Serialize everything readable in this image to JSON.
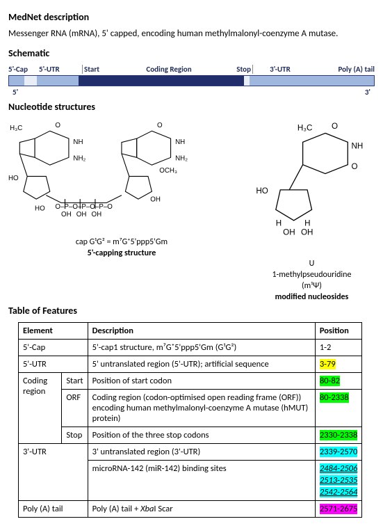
{
  "sections": {
    "mednet": "MedNet description",
    "schematic": "Schematic",
    "nucleotides": "Nucleotide structures",
    "features": "Table of Features"
  },
  "description": "Messenger RNA (mRNA), 5' capped, encoding human methylmalonyl-coenzyme A mutase.",
  "schematic": {
    "labels": {
      "cap": "5'-Cap",
      "utr5": "5'-UTR",
      "start": "Start",
      "coding": "Coding Region",
      "stop": "Stop",
      "utr3": "3'-UTR",
      "polya": "Poly (A) tail"
    },
    "five": "5'",
    "three": "3'",
    "widths": {
      "cap": 22,
      "gap1": 18,
      "utr5": 60,
      "cds": 238,
      "gap2": 8,
      "utr3": 80,
      "polya": 90
    },
    "colors": {
      "bar_border": "#2b3b7c",
      "light": "#9fb6dd",
      "dark": "#222d6b",
      "gap": "#e8edf6",
      "label": "#222d5a"
    }
  },
  "nucleotide_captions": {
    "cap_formula": "cap G¹G² = m⁷G⁺5'ppp5'Gm",
    "cap_title": "5'-capping structure",
    "u_letter": "U",
    "u_name": "1-methylpseudouridine",
    "u_abbrev": "(m¹Ψ)",
    "mod_title": "modified nucleosides"
  },
  "table": {
    "headers": {
      "element": "Element",
      "description": "Description",
      "position": "Position"
    },
    "rows": [
      {
        "element": "5'-Cap",
        "sub": "",
        "desc": "5'-cap1 structure, m⁷G⁺5'ppp5'Gm (G¹G²)",
        "pos": "1-2",
        "hl": null
      },
      {
        "element": "5'-UTR",
        "sub": "",
        "desc": "5' untranslated region (5'-UTR); artificial sequence",
        "pos": "3-79",
        "hl": "#ffff00"
      },
      {
        "element": "Coding region",
        "sub": "Start",
        "desc": "Position of start codon",
        "pos": "80-82",
        "hl": "#00ff00"
      },
      {
        "element": "",
        "sub": "ORF",
        "desc": "Coding region (codon-optimised open reading frame (ORF)) encoding human methylmalonyl-coenzyme A mutase (hMUT) protein)",
        "pos": "80-2338",
        "hl": "#00ff00"
      },
      {
        "element": "",
        "sub": "Stop",
        "desc": "Position of the three stop codons",
        "pos": "2330-2338",
        "hl": "#00ff00"
      },
      {
        "element": "3'-UTR",
        "sub": "",
        "desc": "3' untranslated region (3'-UTR)",
        "pos": "2339-2570",
        "hl": "#00ffff"
      },
      {
        "element": "",
        "sub": "",
        "desc": "microRNA-142 (miR-142) binding sites",
        "pos": [
          "2484-2506",
          "2513-2535",
          "2542-2564"
        ],
        "hl": "#00ffff",
        "italic": true,
        "underline": true
      },
      {
        "element": "Poly (A) tail",
        "sub": "",
        "desc": "Poly (A) tail + XbaI Scar",
        "pos": "2571-2675",
        "hl": "#ff00ff"
      }
    ]
  }
}
